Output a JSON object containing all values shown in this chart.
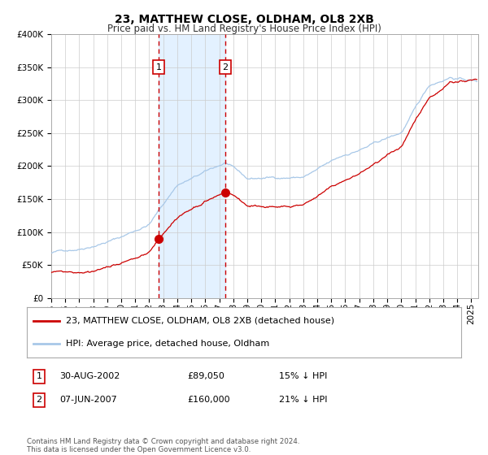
{
  "title": "23, MATTHEW CLOSE, OLDHAM, OL8 2XB",
  "subtitle": "Price paid vs. HM Land Registry's House Price Index (HPI)",
  "ylim": [
    0,
    400000
  ],
  "yticks": [
    0,
    50000,
    100000,
    150000,
    200000,
    250000,
    300000,
    350000,
    400000
  ],
  "ytick_labels": [
    "£0",
    "£50K",
    "£100K",
    "£150K",
    "£200K",
    "£250K",
    "£300K",
    "£350K",
    "£400K"
  ],
  "xlim_start": 1995.0,
  "xlim_end": 2025.5,
  "xticks": [
    1995,
    1996,
    1997,
    1998,
    1999,
    2000,
    2001,
    2002,
    2003,
    2004,
    2005,
    2006,
    2007,
    2008,
    2009,
    2010,
    2011,
    2012,
    2013,
    2014,
    2015,
    2016,
    2017,
    2018,
    2019,
    2020,
    2021,
    2022,
    2023,
    2024,
    2025
  ],
  "background_color": "#ffffff",
  "plot_bg_color": "#ffffff",
  "grid_color": "#cccccc",
  "hpi_line_color": "#a8c8e8",
  "price_line_color": "#cc0000",
  "sale1_date": 2002.66,
  "sale1_price": 89050,
  "sale2_date": 2007.44,
  "sale2_price": 160000,
  "shade_color": "#ddeeff",
  "dashed_line_color": "#cc0000",
  "marker_color": "#cc0000",
  "legend_label1": "23, MATTHEW CLOSE, OLDHAM, OL8 2XB (detached house)",
  "legend_label2": "HPI: Average price, detached house, Oldham",
  "table_row1": [
    "1",
    "30-AUG-2002",
    "£89,050",
    "15% ↓ HPI"
  ],
  "table_row2": [
    "2",
    "07-JUN-2007",
    "£160,000",
    "21% ↓ HPI"
  ],
  "footnote": "Contains HM Land Registry data © Crown copyright and database right 2024.\nThis data is licensed under the Open Government Licence v3.0.",
  "title_fontsize": 10,
  "subtitle_fontsize": 8.5,
  "tick_fontsize": 7.5
}
